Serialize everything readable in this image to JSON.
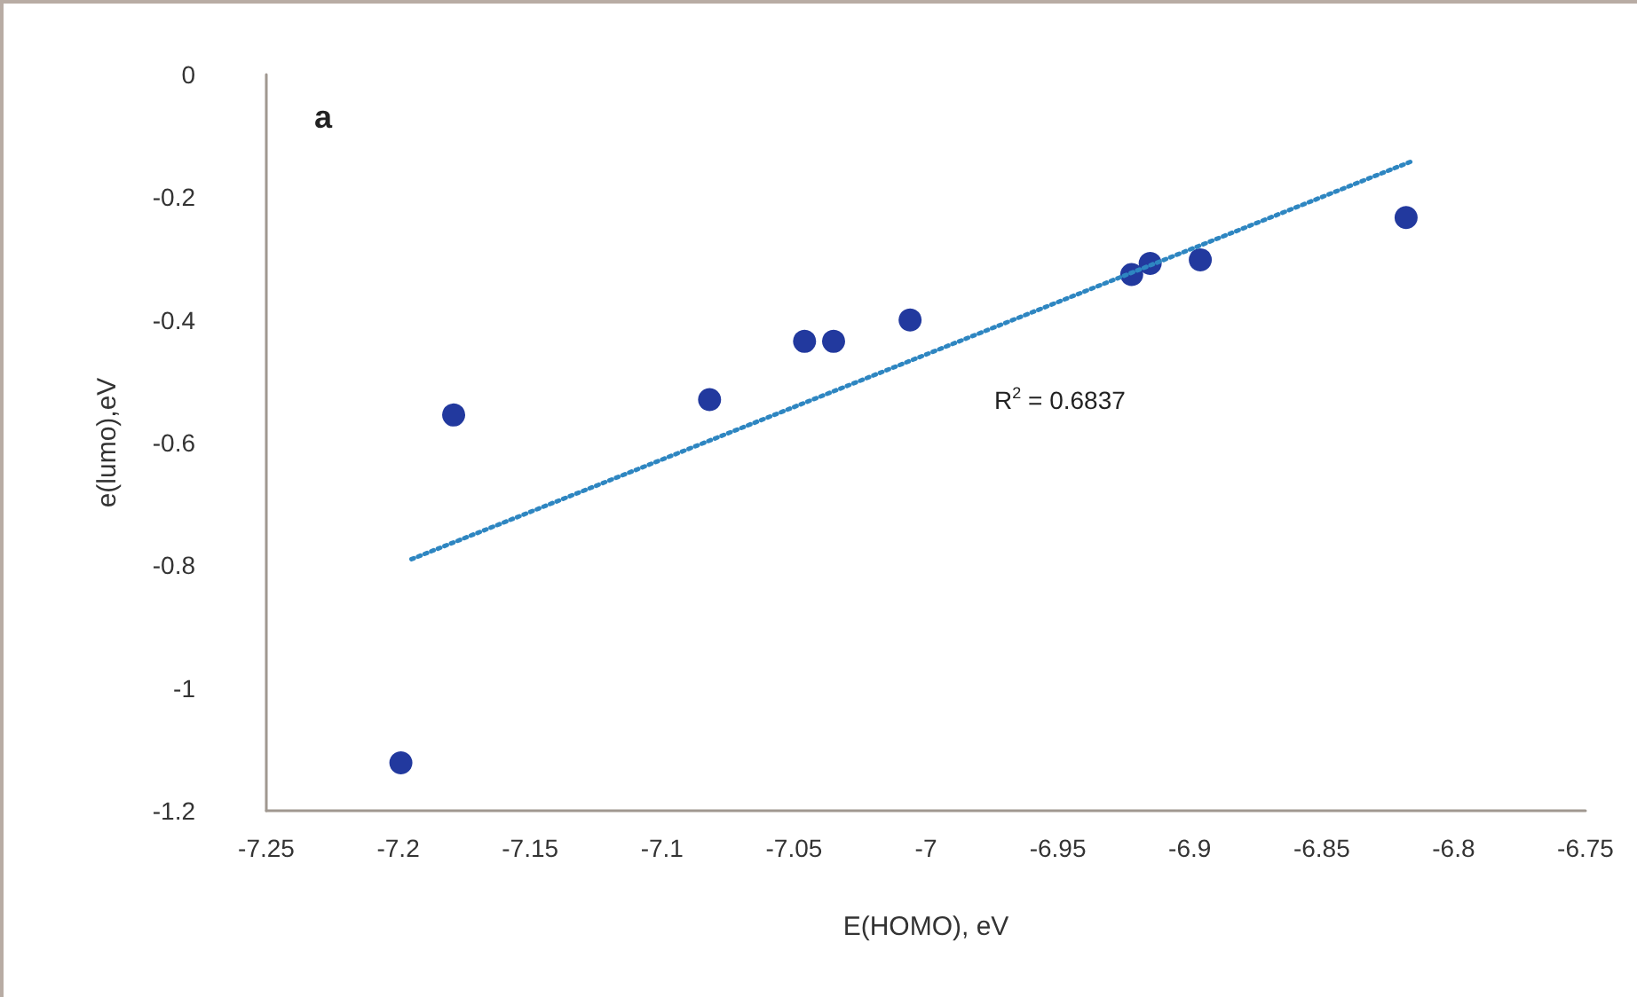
{
  "chart_data": {
    "type": "scatter",
    "xlabel": "E(HOMO), eV",
    "ylabel": "e(lumo),eV",
    "annotations": [
      "a",
      "R$^{2}$ = 0.6837"
    ],
    "series": [
      {
        "color": "#22399e",
        "marker": "circle",
        "x": [
          -7.199,
          -7.179,
          -7.082,
          -7.046,
          -7.035,
          -7.006,
          -6.922,
          -6.915,
          -6.896,
          -6.818
        ],
        "values": [
          -1.122,
          -0.555,
          -0.53,
          -0.435,
          -0.435,
          -0.4,
          -0.326,
          -0.308,
          -0.302,
          -0.233
        ]
      },
      {
        "type": "line",
        "color": "#2e86c1",
        "marker": "none",
        "line_style": "dotted",
        "x": [
          -7.195,
          -6.815
        ],
        "values": [
          -0.79,
          -0.14
        ]
      }
    ],
    "xlim": [
      -7.25,
      -6.75
    ],
    "xticks": [
      -7.25,
      -7.2,
      -7.15,
      -7.1,
      -7.05,
      -7,
      -6.95,
      -6.9,
      -6.85,
      -6.8,
      -6.75
    ],
    "ylim": [
      -1.2,
      0
    ],
    "yticks": [
      -1.2,
      -1,
      -0.8,
      -0.6,
      -0.4,
      -0.2,
      0
    ],
    "grid": false
  }
}
